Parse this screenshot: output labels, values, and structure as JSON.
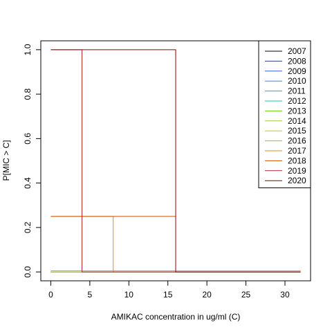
{
  "chart_data": {
    "type": "line",
    "title": "",
    "xlabel": "AMIKAC concentration in ug/ml (C)",
    "ylabel": "P[MIC > C]",
    "xlim": [
      -1.28,
      33.28
    ],
    "ylim": [
      -0.04,
      1.04
    ],
    "x_ticks": [
      0,
      5,
      10,
      15,
      20,
      25,
      30
    ],
    "y_ticks": [
      0.0,
      0.2,
      0.4,
      0.6,
      0.8,
      1.0
    ],
    "x_tick_labels": [
      "0",
      "5",
      "10",
      "15",
      "20",
      "25",
      "30"
    ],
    "y_tick_labels": [
      "0.0",
      "0.2",
      "0.4",
      "0.6",
      "0.8",
      "1.0"
    ],
    "grid": false,
    "legend_position": "top-right",
    "series": [
      {
        "name": "2007",
        "color": "#000000",
        "points": [
          [
            0,
            0.0
          ],
          [
            32,
            0.0
          ]
        ]
      },
      {
        "name": "2008",
        "color": "#27408B",
        "points": [
          [
            0,
            0.0
          ],
          [
            32,
            0.0
          ]
        ]
      },
      {
        "name": "2009",
        "color": "#3A5FCD",
        "points": [
          [
            0,
            0.0
          ],
          [
            32,
            0.0
          ]
        ]
      },
      {
        "name": "2010",
        "color": "#1E90FF",
        "points": [
          [
            0,
            0.0
          ],
          [
            32,
            0.0
          ]
        ]
      },
      {
        "name": "2011",
        "color": "#00B2EE",
        "points": [
          [
            0,
            0.0
          ],
          [
            32,
            0.0
          ]
        ]
      },
      {
        "name": "2012",
        "color": "#00CDAD",
        "points": [
          [
            0,
            0.0
          ],
          [
            32,
            0.0
          ]
        ]
      },
      {
        "name": "2013",
        "color": "#66CD00",
        "points": [
          [
            0,
            0.0
          ],
          [
            32,
            0.0
          ]
        ]
      },
      {
        "name": "2014",
        "color": "#9ACD32",
        "points": [
          [
            0,
            0.0
          ],
          [
            32,
            0.0
          ]
        ]
      },
      {
        "name": "2015",
        "color": "#CDCD00",
        "points": [
          [
            0,
            0.0
          ],
          [
            32,
            0.0
          ]
        ]
      },
      {
        "name": "2016",
        "color": "#CDAD00",
        "points": [
          [
            0,
            0.005
          ],
          [
            32,
            0.005
          ]
        ]
      },
      {
        "name": "2017",
        "color": "#E08A1E",
        "points": [
          [
            0,
            0.25
          ],
          [
            8,
            0.25
          ],
          [
            8,
            0.0
          ],
          [
            32,
            0.0
          ]
        ]
      },
      {
        "name": "2018",
        "color": "#CD4F00",
        "points": [
          [
            0,
            0.25
          ],
          [
            16,
            0.25
          ],
          [
            16,
            0.0
          ],
          [
            32,
            0.0
          ]
        ]
      },
      {
        "name": "2019",
        "color": "#B22222",
        "points": [
          [
            0,
            1.0
          ],
          [
            4,
            1.0
          ],
          [
            4,
            0.0
          ],
          [
            32,
            0.0
          ]
        ]
      },
      {
        "name": "2020",
        "color": "#8B0000",
        "points": [
          [
            0,
            1.0
          ],
          [
            16,
            1.0
          ],
          [
            16,
            0.0
          ],
          [
            32,
            0.0
          ]
        ]
      }
    ]
  }
}
